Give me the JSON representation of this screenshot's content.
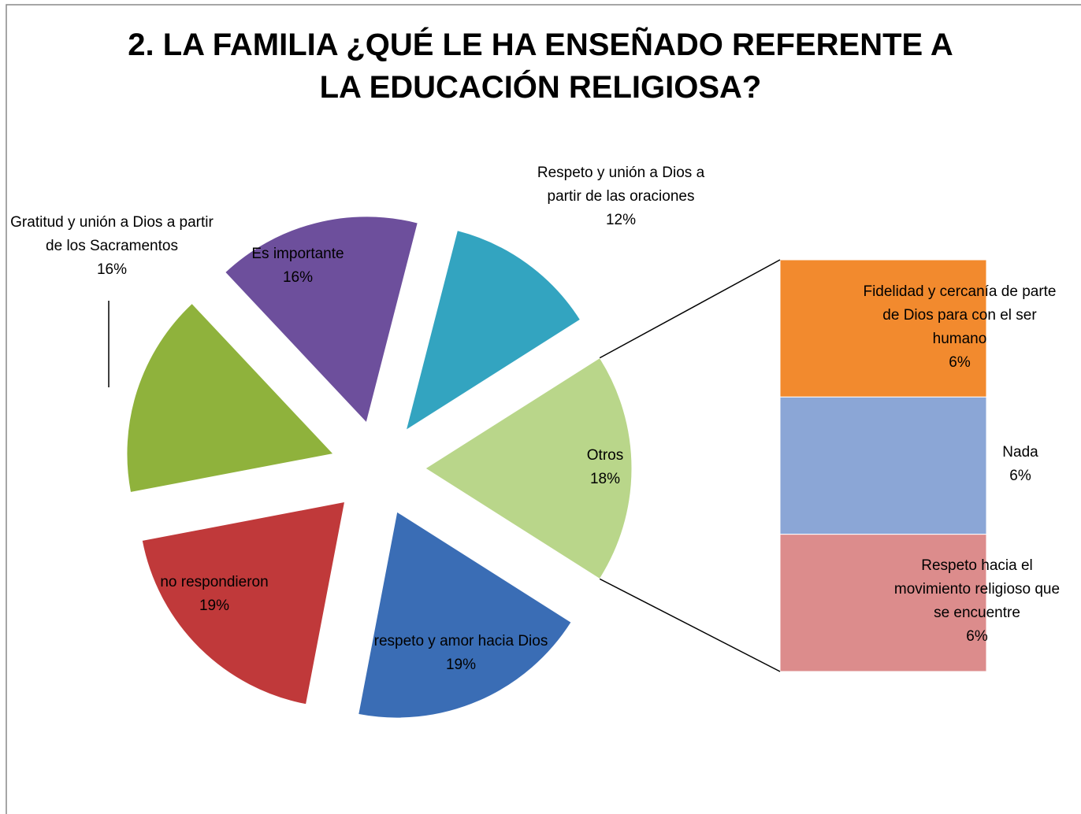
{
  "chart_data": {
    "type": "pie-of-bar",
    "title": "2. LA FAMILIA ¿QUÉ LE HA ENSEÑADO REFERENTE A LA EDUCACIÓN RELIGIOSA?",
    "categories": [
      "respeto y amor hacia Dios",
      "no respondieron",
      "Gratitud y unión a Dios a partir de los Sacramentos",
      "Es importante",
      "Respeto y unión a Dios a partir de las oraciones",
      "Otros"
    ],
    "values": [
      19,
      19,
      16,
      16,
      12,
      18
    ],
    "value_labels": [
      "19%",
      "19%",
      "16%",
      "16%",
      "12%",
      "18%"
    ],
    "colors": [
      "#3a6db5",
      "#c0393a",
      "#8fb23c",
      "#6d4f9c",
      "#33a4c0",
      "#b9d68a"
    ],
    "breakdown": {
      "categories": [
        "Fidelidad y cercanía de parte de Dios para con el ser humano",
        "Nada",
        "Respeto hacia el movimiento religioso que se encuentre"
      ],
      "values": [
        6,
        6,
        6
      ],
      "value_labels": [
        "6%",
        "6%",
        "6%"
      ],
      "colors": [
        "#f28a2e",
        "#8ba6d6",
        "#dc8c8c"
      ]
    }
  }
}
